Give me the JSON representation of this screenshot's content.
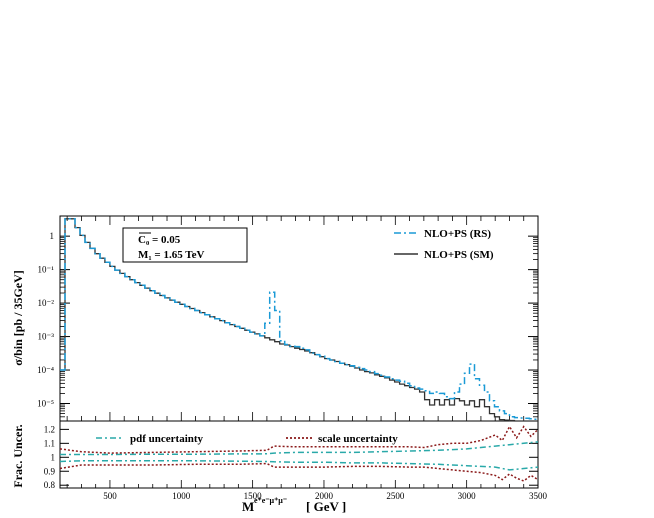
{
  "chart_data": [
    {
      "type": "line",
      "panel": "main",
      "yscale": "log",
      "ylabel": "σ/bin  [pb / 35GeV]",
      "xlim": [
        150,
        3500
      ],
      "ylim": [
        3e-06,
        4
      ],
      "ytick_labels": [
        "1",
        "10⁻¹",
        "10⁻²",
        "10⁻³",
        "10⁻⁴",
        "10⁻⁵"
      ],
      "annotation": {
        "c0": "C₀  = 0.05",
        "m1": "M₁ = 1.65 TeV"
      },
      "legend_position": "top-right",
      "series": [
        {
          "name": "NLO+PS (RS)",
          "style": "dash-dot",
          "color": "#1a9ad6",
          "x": [
            150,
            185,
            220,
            255,
            290,
            325,
            360,
            395,
            430,
            465,
            500,
            535,
            570,
            605,
            640,
            675,
            710,
            745,
            780,
            815,
            850,
            885,
            920,
            955,
            990,
            1025,
            1060,
            1095,
            1130,
            1165,
            1200,
            1235,
            1270,
            1305,
            1340,
            1375,
            1410,
            1445,
            1480,
            1515,
            1550,
            1585,
            1620,
            1655,
            1690,
            1725,
            1760,
            1795,
            1830,
            1865,
            1900,
            1935,
            1970,
            2005,
            2040,
            2075,
            2110,
            2145,
            2180,
            2215,
            2250,
            2285,
            2320,
            2355,
            2390,
            2425,
            2460,
            2495,
            2530,
            2565,
            2600,
            2635,
            2670,
            2705,
            2740,
            2775,
            2810,
            2845,
            2880,
            2915,
            2950,
            2985,
            3020,
            3055,
            3090,
            3125,
            3160,
            3195,
            3230,
            3265,
            3300,
            3335,
            3370,
            3405,
            3440,
            3475
          ],
          "y": [
            0.0001,
            3.3,
            3.3,
            1.8,
            1.05,
            0.65,
            0.43,
            0.3,
            0.22,
            0.165,
            0.125,
            0.097,
            0.077,
            0.062,
            0.05,
            0.041,
            0.034,
            0.028,
            0.0234,
            0.0198,
            0.0168,
            0.0143,
            0.0123,
            0.0106,
            0.0092,
            0.0079,
            0.0069,
            0.006,
            0.0052,
            0.0045,
            0.0039,
            0.0034,
            0.003,
            0.0026,
            0.00228,
            0.002,
            0.00176,
            0.00155,
            0.00136,
            0.0012,
            0.00105,
            0.0025,
            0.021,
            0.006,
            0.00075,
            0.00058,
            0.00052,
            0.0005,
            0.00045,
            0.0004,
            0.00032,
            0.00029,
            0.00026,
            0.00022,
            0.0002,
            0.00018,
            0.00016,
            0.000145,
            0.000135,
            0.00012,
            0.00011,
            0.0001,
            9e-05,
            7.8e-05,
            7e-05,
            6.2e-05,
            5.5e-05,
            5e-05,
            4.6e-05,
            4e-05,
            3.4e-05,
            2.9e-05,
            2.7e-05,
            2.4e-05,
            2e-05,
            2.2e-05,
            2e-05,
            1.6e-05,
            1.4e-05,
            2.2e-05,
            3.8e-05,
            8e-05,
            0.00015,
            5.5e-05,
            3.5e-05,
            2.2e-05,
            1.2e-05,
            8e-06,
            6e-06,
            5e-06,
            4e-06,
            3.8e-06,
            3.7e-06,
            3.6e-06,
            3.5e-06,
            3.4e-06
          ]
        },
        {
          "name": "NLO+PS (SM)",
          "style": "solid",
          "color": "#333333",
          "x": [
            150,
            185,
            220,
            255,
            290,
            325,
            360,
            395,
            430,
            465,
            500,
            535,
            570,
            605,
            640,
            675,
            710,
            745,
            780,
            815,
            850,
            885,
            920,
            955,
            990,
            1025,
            1060,
            1095,
            1130,
            1165,
            1200,
            1235,
            1270,
            1305,
            1340,
            1375,
            1410,
            1445,
            1480,
            1515,
            1550,
            1585,
            1620,
            1655,
            1690,
            1725,
            1760,
            1795,
            1830,
            1865,
            1900,
            1935,
            1970,
            2005,
            2040,
            2075,
            2110,
            2145,
            2180,
            2215,
            2250,
            2285,
            2320,
            2355,
            2390,
            2425,
            2460,
            2495,
            2530,
            2565,
            2600,
            2635,
            2670,
            2705,
            2740,
            2775,
            2810,
            2845,
            2880,
            2915,
            2950,
            2985,
            3020,
            3055,
            3090,
            3125,
            3160,
            3195,
            3230,
            3265,
            3300,
            3335,
            3370,
            3405,
            3440,
            3475
          ],
          "y": [
            0.0001,
            3.3,
            3.3,
            1.8,
            1.05,
            0.65,
            0.43,
            0.3,
            0.22,
            0.165,
            0.125,
            0.097,
            0.077,
            0.062,
            0.05,
            0.041,
            0.034,
            0.028,
            0.0234,
            0.0198,
            0.0168,
            0.0143,
            0.0123,
            0.0106,
            0.0092,
            0.0079,
            0.0069,
            0.006,
            0.0052,
            0.0045,
            0.0039,
            0.0034,
            0.003,
            0.0026,
            0.00228,
            0.002,
            0.00176,
            0.00155,
            0.00136,
            0.0012,
            0.00105,
            0.00092,
            0.0008,
            0.0007,
            0.0006,
            0.00056,
            0.0005,
            0.00045,
            0.00041,
            0.00037,
            0.00033,
            0.00029,
            0.00025,
            0.00022,
            0.0002,
            0.00018,
            0.00016,
            0.000145,
            0.00013,
            0.000115,
            0.0001,
            9e-05,
            8.2e-05,
            7.2e-05,
            6.5e-05,
            5.8e-05,
            5e-05,
            4.4e-05,
            3.8e-05,
            3.4e-05,
            3e-05,
            2.7e-05,
            2.2e-05,
            1.3e-05,
            9e-06,
            1.3e-05,
            9e-06,
            1.3e-05,
            9e-06,
            1.4e-05,
            1.2e-05,
            9e-06,
            1.2e-05,
            8e-06,
            1.3e-05,
            8e-06,
            5e-06,
            4e-06,
            3.3e-06,
            3.2e-06,
            3.1e-06,
            3e-06,
            3e-06,
            3e-06,
            3e-06,
            3e-06
          ]
        }
      ]
    },
    {
      "type": "line",
      "panel": "ratio",
      "xlabel_main": "M",
      "xlabel_sup": "e⁺e⁻μ⁺μ⁻",
      "xlabel_unit": "[ GeV ]",
      "ylabel": "Frac. Uncer.",
      "xlim": [
        150,
        3500
      ],
      "ylim": [
        0.78,
        1.26
      ],
      "xticks": [
        500,
        1000,
        1500,
        2000,
        2500,
        3000,
        3500
      ],
      "xtick_labels": [
        "500",
        "1000",
        "1500",
        "2000",
        "2500",
        "3000",
        "3500"
      ],
      "yticks": [
        0.8,
        0.9,
        1,
        1.1,
        1.2
      ],
      "ytick_labels": [
        "0.8",
        "0.9",
        "1",
        "1.1",
        "1.2"
      ],
      "legend_position": "top",
      "series": [
        {
          "name": "pdf uncertainty",
          "style": "dash-dot",
          "color": "#2aa9a9",
          "x": [
            150,
            300,
            500,
            800,
            1100,
            1400,
            1600,
            1650,
            1800,
            2000,
            2200,
            2400,
            2600,
            2800,
            2900,
            3000,
            3100,
            3200,
            3300,
            3400,
            3500
          ],
          "upper": [
            1.02,
            1.02,
            1.02,
            1.022,
            1.022,
            1.024,
            1.025,
            1.03,
            1.035,
            1.035,
            1.035,
            1.04,
            1.045,
            1.05,
            1.055,
            1.06,
            1.07,
            1.08,
            1.09,
            1.1,
            1.11
          ],
          "lower": [
            0.97,
            0.975,
            0.975,
            0.975,
            0.975,
            0.972,
            0.97,
            0.968,
            0.965,
            0.965,
            0.96,
            0.96,
            0.955,
            0.95,
            0.945,
            0.94,
            0.935,
            0.93,
            0.91,
            0.92,
            0.93
          ]
        },
        {
          "name": "scale uncertainty",
          "style": "dotted",
          "color": "#8b1a1a",
          "x": [
            150,
            300,
            500,
            800,
            1100,
            1400,
            1600,
            1650,
            1800,
            2000,
            2200,
            2400,
            2600,
            2700,
            2800,
            2900,
            3000,
            3100,
            3200,
            3250,
            3300,
            3350,
            3400,
            3450,
            3500
          ],
          "upper": [
            1.06,
            1.04,
            1.03,
            1.035,
            1.04,
            1.045,
            1.05,
            1.08,
            1.075,
            1.075,
            1.075,
            1.075,
            1.075,
            1.07,
            1.09,
            1.1,
            1.1,
            1.12,
            1.16,
            1.12,
            1.22,
            1.14,
            1.22,
            1.15,
            1.2
          ],
          "lower": [
            0.92,
            0.945,
            0.945,
            0.945,
            0.95,
            0.95,
            0.955,
            0.93,
            0.93,
            0.93,
            0.935,
            0.935,
            0.93,
            0.93,
            0.92,
            0.91,
            0.9,
            0.89,
            0.87,
            0.84,
            0.88,
            0.85,
            0.83,
            0.87,
            0.84
          ]
        }
      ]
    }
  ]
}
